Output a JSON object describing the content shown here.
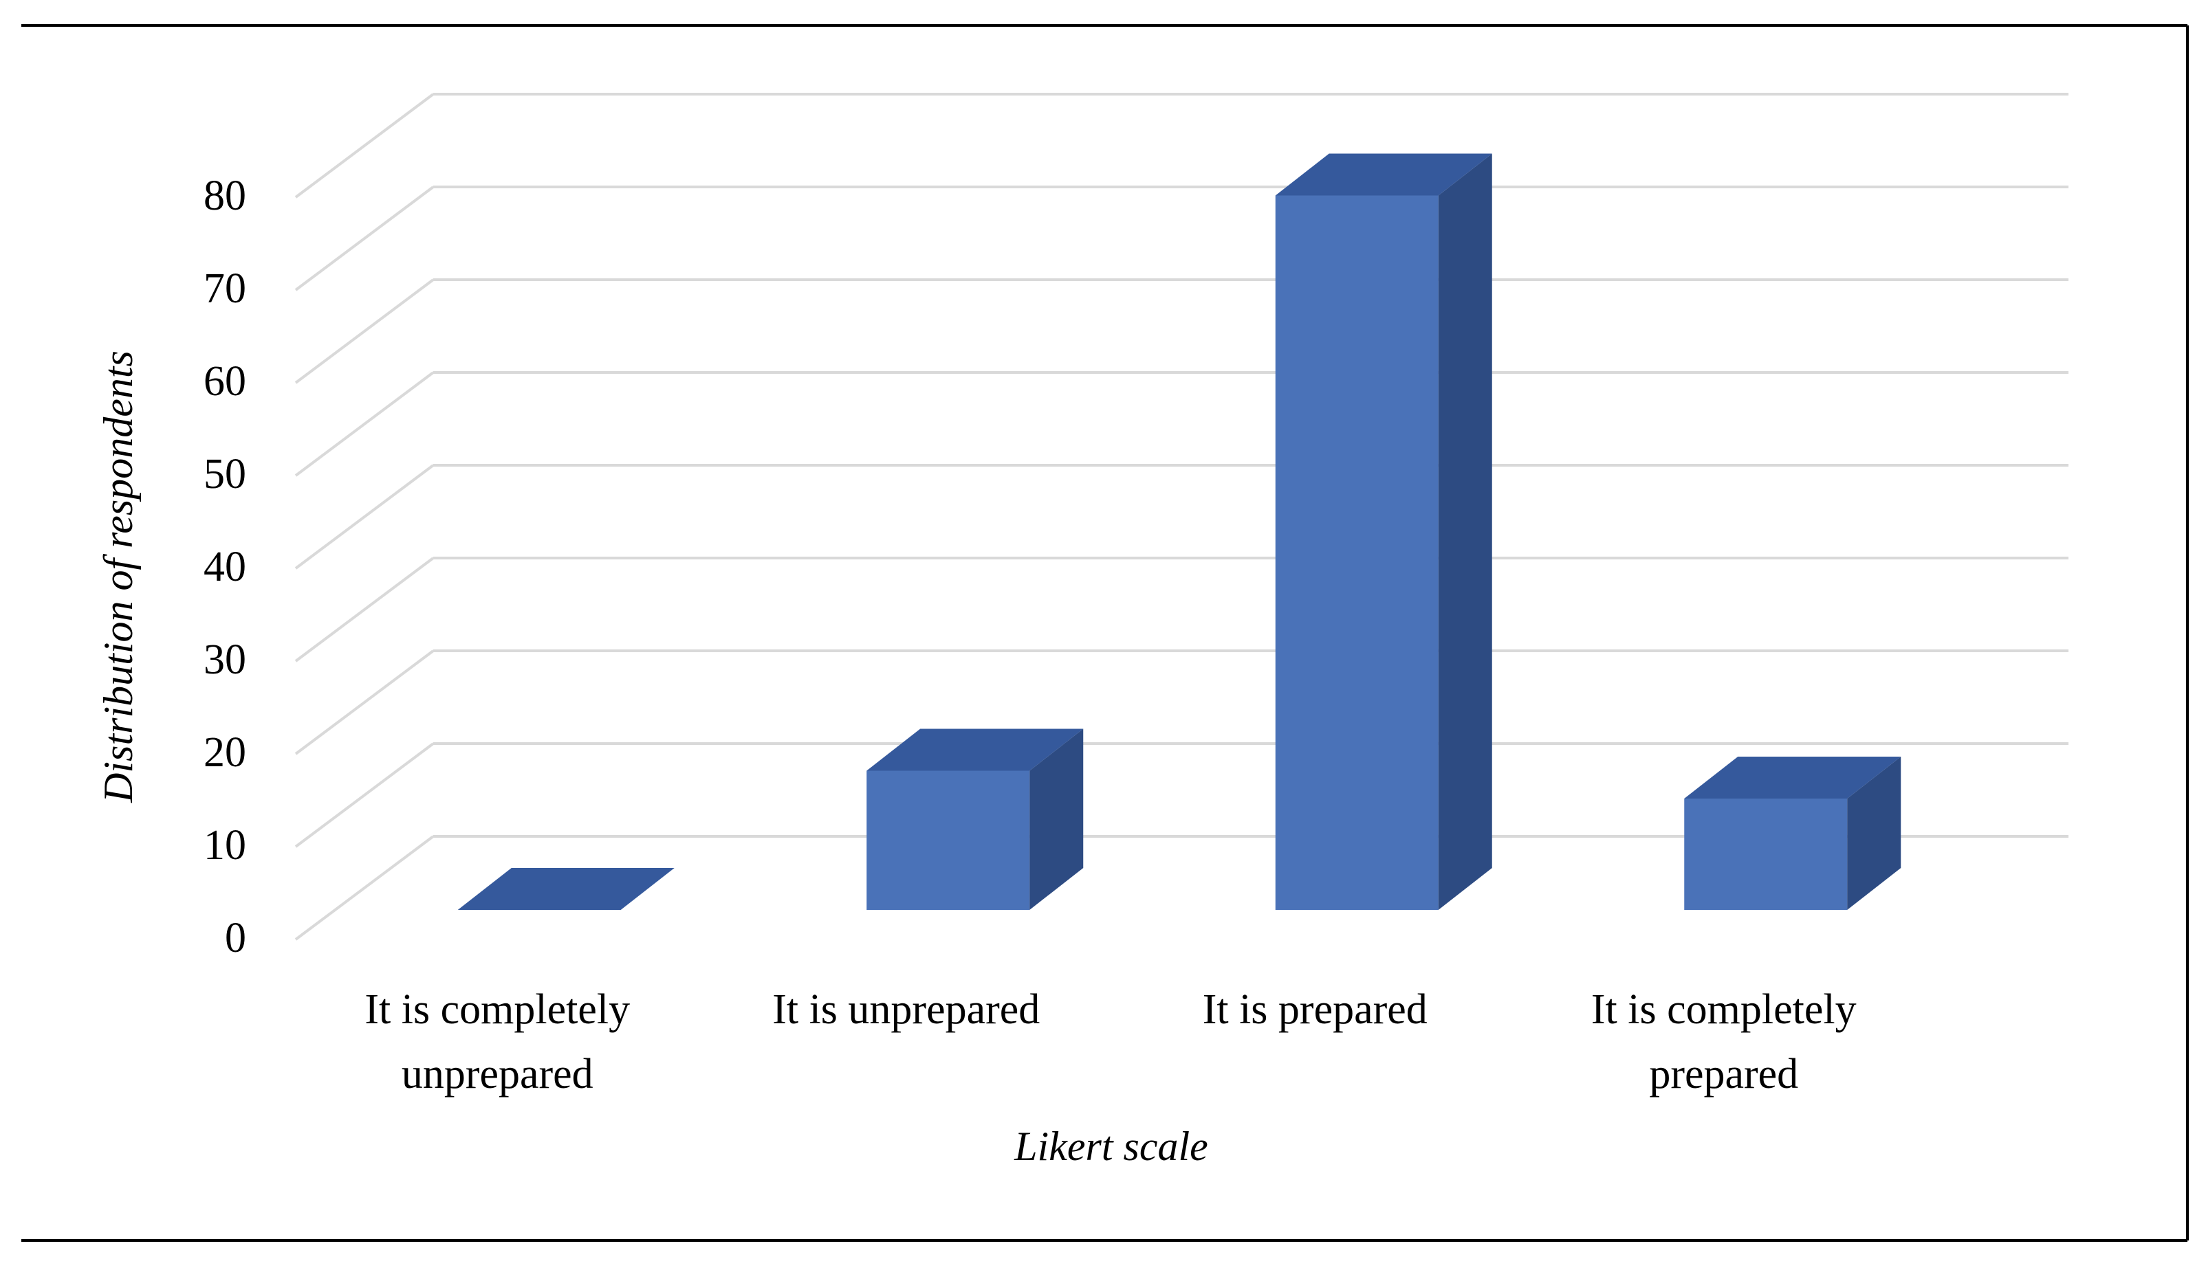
{
  "chart_data": {
    "type": "bar3d",
    "x_label": "Likert scale",
    "y_label": "Distribution of respondents",
    "categories": [
      "It is completely unprepared",
      "It is unprepared",
      "It is prepared",
      "It is completely prepared"
    ],
    "values": [
      0,
      15,
      77,
      12
    ],
    "colors": {
      "front": "#4a72b8",
      "side": "#2d4b82",
      "top": "#35599c"
    },
    "ylim": [
      0,
      80
    ],
    "yticks": [
      0,
      10,
      20,
      30,
      40,
      50,
      60,
      70,
      80
    ],
    "grid": true
  }
}
